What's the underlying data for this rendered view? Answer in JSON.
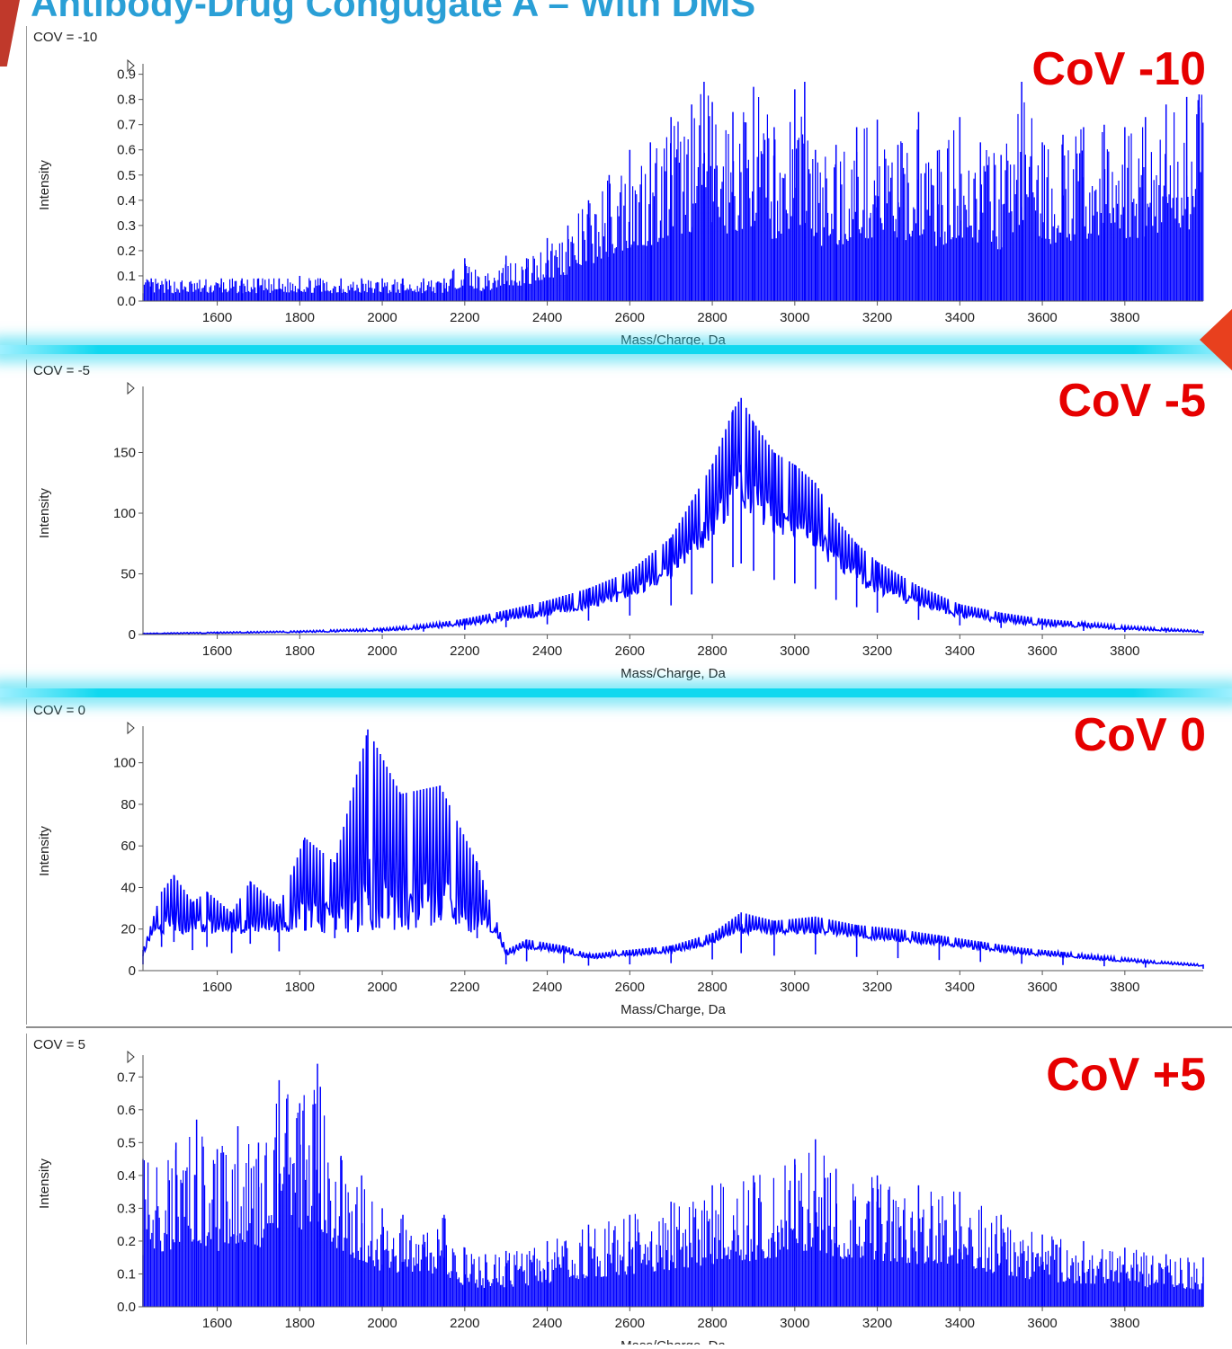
{
  "slide": {
    "title": "Antibody-Drug Congugate A – With DMS"
  },
  "colors": {
    "title": "#2a9fd6",
    "trace": "#0000ff",
    "cov_label": "#e60000",
    "divider_glow": "#10d8ef"
  },
  "chart_data": [
    {
      "type": "line",
      "panel_label": "COV = -10",
      "annotation": "CoV -10",
      "xlabel": "Mass/Charge, Da",
      "ylabel": "Intensity",
      "xlim": [
        1420,
        3990
      ],
      "ylim": [
        0,
        0.92
      ],
      "yticks": [
        0.0,
        0.1,
        0.2,
        0.3,
        0.4,
        0.5,
        0.6,
        0.7,
        0.8,
        0.9
      ],
      "ytick_labels": [
        "0.0",
        "0.1",
        "0.2",
        "0.3",
        "0.4",
        "0.5",
        "0.6",
        "0.7",
        "0.8",
        "0.9"
      ],
      "xticks": [
        1600,
        1800,
        2000,
        2200,
        2400,
        2600,
        2800,
        3000,
        3200,
        3400,
        3600,
        3800
      ],
      "xtick_labels": [
        "1600",
        "1800",
        "2000",
        "2200",
        "2400",
        "2600",
        "2800",
        "3000",
        "3200",
        "3400",
        "3600",
        "3800"
      ],
      "style": "sticks",
      "x": [
        1440,
        1610,
        1660,
        1700,
        1750,
        1800,
        1850,
        1900,
        1950,
        2000,
        2050,
        2100,
        2150,
        2200,
        2250,
        2300,
        2350,
        2400,
        2450,
        2500,
        2550,
        2600,
        2650,
        2700,
        2750,
        2780,
        2800,
        2850,
        2900,
        2950,
        3000,
        3024,
        3050,
        3100,
        3150,
        3200,
        3250,
        3300,
        3350,
        3400,
        3450,
        3500,
        3550,
        3600,
        3650,
        3700,
        3750,
        3800,
        3850,
        3900,
        3950,
        3980
      ],
      "y": [
        0.09,
        0.09,
        0.09,
        0.09,
        0.09,
        0.1,
        0.09,
        0.09,
        0.09,
        0.09,
        0.09,
        0.09,
        0.09,
        0.17,
        0.1,
        0.18,
        0.17,
        0.25,
        0.3,
        0.4,
        0.5,
        0.6,
        0.63,
        0.73,
        0.78,
        0.87,
        0.79,
        0.75,
        0.85,
        0.69,
        0.84,
        0.87,
        0.6,
        0.62,
        0.69,
        0.72,
        0.62,
        0.75,
        0.6,
        0.73,
        0.63,
        0.58,
        0.87,
        0.63,
        0.66,
        0.69,
        0.7,
        0.69,
        0.73,
        0.78,
        0.81,
        0.82
      ]
    },
    {
      "type": "line",
      "panel_label": "COV = -5",
      "annotation": "CoV -5",
      "xlabel": "Mass/Charge, Da",
      "ylabel": "Intensity",
      "xlim": [
        1420,
        3990
      ],
      "ylim": [
        0,
        200
      ],
      "yticks": [
        0,
        50,
        100,
        150
      ],
      "ytick_labels": [
        "0",
        "50",
        "100",
        "150"
      ],
      "xticks": [
        1600,
        1800,
        2000,
        2200,
        2400,
        2600,
        2800,
        3000,
        3200,
        3400,
        3600,
        3800
      ],
      "xtick_labels": [
        "1600",
        "1800",
        "2000",
        "2200",
        "2400",
        "2600",
        "2800",
        "3000",
        "3200",
        "3400",
        "3600",
        "3800"
      ],
      "style": "line",
      "x": [
        1420,
        1600,
        1800,
        2000,
        2100,
        2200,
        2300,
        2400,
        2500,
        2600,
        2700,
        2750,
        2800,
        2850,
        2870,
        2900,
        2950,
        3000,
        3050,
        3100,
        3150,
        3200,
        3300,
        3400,
        3500,
        3600,
        3700,
        3800,
        3900,
        3990
      ],
      "y": [
        1,
        2,
        3,
        5,
        8,
        13,
        20,
        28,
        38,
        52,
        80,
        110,
        140,
        185,
        195,
        175,
        150,
        140,
        125,
        95,
        75,
        60,
        40,
        25,
        18,
        13,
        10,
        7,
        5,
        3
      ]
    },
    {
      "type": "line",
      "panel_label": "COV = 0",
      "annotation": "CoV 0",
      "xlabel": "Mass/Charge, Da",
      "ylabel": "Intensity",
      "xlim": [
        1420,
        3990
      ],
      "ylim": [
        0,
        115
      ],
      "yticks": [
        0,
        20,
        40,
        60,
        80,
        100
      ],
      "ytick_labels": [
        "0",
        "20",
        "40",
        "60",
        "80",
        "100"
      ],
      "xticks": [
        1600,
        1800,
        2000,
        2200,
        2400,
        2600,
        2800,
        3000,
        3200,
        3400,
        3600,
        3800
      ],
      "xtick_labels": [
        "1600",
        "1800",
        "2000",
        "2200",
        "2400",
        "2600",
        "2800",
        "3000",
        "3200",
        "3400",
        "3600",
        "3800"
      ],
      "style": "line",
      "x": [
        1420,
        1465,
        1495,
        1540,
        1575,
        1635,
        1680,
        1750,
        1812,
        1885,
        1965,
        2045,
        2140,
        2230,
        2300,
        2350,
        2440,
        2500,
        2600,
        2700,
        2800,
        2870,
        2950,
        3050,
        3150,
        3250,
        3350,
        3450,
        3550,
        3650,
        3750,
        3850,
        3990
      ],
      "y": [
        10,
        38,
        46,
        33,
        38,
        28,
        43,
        31,
        64,
        52,
        116,
        85,
        89,
        52,
        10,
        15,
        12,
        8,
        10,
        12,
        18,
        28,
        24,
        26,
        22,
        20,
        17,
        14,
        11,
        9,
        7,
        5,
        3
      ]
    },
    {
      "type": "line",
      "panel_label": "COV = 5",
      "annotation": "CoV +5",
      "xlabel": "Mass/Charge, Da",
      "ylabel": "Intensity",
      "xlim": [
        1420,
        3990
      ],
      "ylim": [
        0,
        0.75
      ],
      "yticks": [
        0.0,
        0.1,
        0.2,
        0.3,
        0.4,
        0.5,
        0.6,
        0.7
      ],
      "ytick_labels": [
        "0.0",
        "0.1",
        "0.2",
        "0.3",
        "0.4",
        "0.5",
        "0.6",
        "0.7"
      ],
      "xticks": [
        1600,
        1800,
        2000,
        2200,
        2400,
        2600,
        2800,
        3000,
        3200,
        3400,
        3600,
        3800
      ],
      "xtick_labels": [
        "1600",
        "1800",
        "2000",
        "2200",
        "2400",
        "2600",
        "2800",
        "3000",
        "3200",
        "3400",
        "3600",
        "3800"
      ],
      "style": "sticks",
      "x": [
        1420,
        1500,
        1550,
        1600,
        1650,
        1700,
        1750,
        1800,
        1843,
        1850,
        1900,
        1950,
        2000,
        2050,
        2100,
        2150,
        2200,
        2250,
        2300,
        2400,
        2500,
        2600,
        2700,
        2800,
        2900,
        3000,
        3050,
        3100,
        3200,
        3300,
        3400,
        3500,
        3600,
        3700,
        3800,
        3900,
        3990
      ],
      "y": [
        0.45,
        0.5,
        0.57,
        0.48,
        0.55,
        0.5,
        0.69,
        0.62,
        0.74,
        0.67,
        0.46,
        0.4,
        0.3,
        0.28,
        0.22,
        0.28,
        0.18,
        0.16,
        0.17,
        0.2,
        0.25,
        0.28,
        0.32,
        0.37,
        0.4,
        0.45,
        0.51,
        0.42,
        0.4,
        0.37,
        0.35,
        0.28,
        0.22,
        0.2,
        0.18,
        0.16,
        0.15
      ]
    }
  ]
}
